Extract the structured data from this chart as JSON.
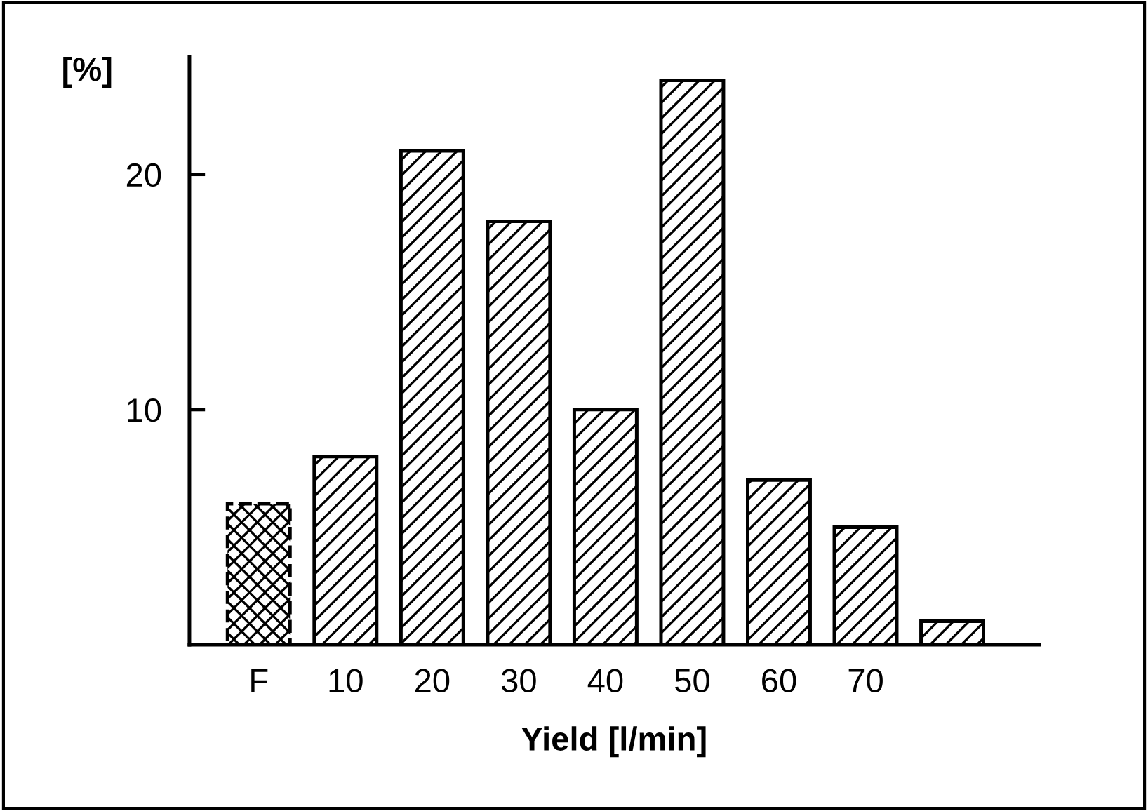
{
  "chart_data": {
    "type": "bar",
    "xlabel": "Yield [l/min]",
    "ylabel": "[%]",
    "categories": [
      "F",
      "10",
      "20",
      "30",
      "40",
      "50",
      "60",
      "70",
      null
    ],
    "values": [
      6,
      8,
      21,
      18,
      10,
      24,
      7,
      5,
      1
    ],
    "color": "#000000",
    "ylim": [
      0,
      25
    ],
    "yticks": [
      10,
      20
    ],
    "grid": false,
    "legend": false
  }
}
